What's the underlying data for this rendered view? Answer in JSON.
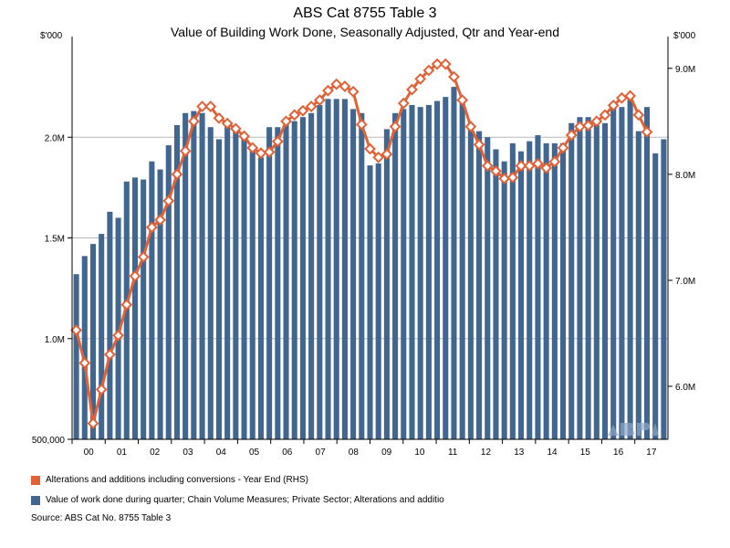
{
  "chart_data": {
    "type": "bar+line",
    "title": "ABS Cat 8755 Table 3",
    "subtitle": "Value of Building Work Done, Seasonally Adjusted, Qtr and Year-end",
    "left_unit": "$'000",
    "right_unit": "$'000",
    "y_left": {
      "min": 500000,
      "max": 2500000,
      "ticks": [
        500000,
        1000000,
        1500000,
        2000000
      ],
      "tick_labels": [
        "500,000",
        "1.0M",
        "1.5M",
        "2.0M"
      ]
    },
    "y_right": {
      "min": 5500000,
      "max": 9300000,
      "ticks": [
        6000000,
        7000000,
        8000000,
        9000000
      ],
      "tick_labels": [
        "6.0M",
        "7.0M",
        "8.0M",
        "9.0M"
      ]
    },
    "x_labels": [
      "00",
      "01",
      "02",
      "03",
      "04",
      "05",
      "06",
      "07",
      "08",
      "09",
      "10",
      "11",
      "12",
      "13",
      "14",
      "15",
      "16",
      "17"
    ],
    "grid": true,
    "series": [
      {
        "name": "Value of work done during quarter; Chain Volume Measures; Private Sector; Alterations and additio",
        "type": "bar",
        "axis": "left",
        "color": "#41668f",
        "values": [
          1320000,
          1410000,
          1470000,
          1520000,
          1630000,
          1600000,
          1780000,
          1800000,
          1790000,
          1880000,
          1840000,
          1960000,
          2060000,
          2120000,
          2130000,
          2120000,
          2050000,
          1990000,
          2080000,
          2030000,
          1990000,
          1960000,
          1900000,
          2050000,
          2050000,
          2090000,
          2080000,
          2100000,
          2120000,
          2160000,
          2190000,
          2190000,
          2190000,
          2140000,
          2120000,
          1860000,
          1870000,
          2040000,
          2120000,
          2140000,
          2160000,
          2150000,
          2160000,
          2180000,
          2200000,
          2250000,
          2200000,
          2070000,
          2030000,
          2000000,
          1940000,
          1880000,
          1970000,
          1930000,
          1980000,
          2010000,
          1970000,
          1970000,
          1970000,
          2070000,
          2100000,
          2100000,
          2060000,
          2070000,
          2150000,
          2150000,
          2200000,
          2030000,
          2150000,
          1920000,
          1990000
        ]
      },
      {
        "name": "Alterations and additions including conversions - Year End (RHS)",
        "type": "line",
        "axis": "right",
        "color": "#e06236",
        "values": [
          6530000,
          6220000,
          5650000,
          5970000,
          6300000,
          6480000,
          6770000,
          7040000,
          7220000,
          7500000,
          7570000,
          7750000,
          8000000,
          8220000,
          8500000,
          8640000,
          8640000,
          8530000,
          8480000,
          8430000,
          8360000,
          8250000,
          8200000,
          8210000,
          8310000,
          8500000,
          8560000,
          8600000,
          8640000,
          8700000,
          8790000,
          8850000,
          8830000,
          8780000,
          8470000,
          8240000,
          8160000,
          8190000,
          8450000,
          8670000,
          8800000,
          8900000,
          8980000,
          9040000,
          9040000,
          8920000,
          8700000,
          8450000,
          8280000,
          8080000,
          8030000,
          7960000,
          7970000,
          8080000,
          8080000,
          8100000,
          8060000,
          8120000,
          8250000,
          8370000,
          8450000,
          8460000,
          8500000,
          8560000,
          8650000,
          8720000,
          8740000,
          8560000,
          8400000
        ]
      }
    ]
  },
  "legend": {
    "line_label": "Alterations and additions including conversions - Year End (RHS)",
    "bar_label": "Value of work done during quarter; Chain Volume Measures; Private Sector; Alterations and additio"
  },
  "source": "Source: ABS Cat No. 8755 Table 3"
}
